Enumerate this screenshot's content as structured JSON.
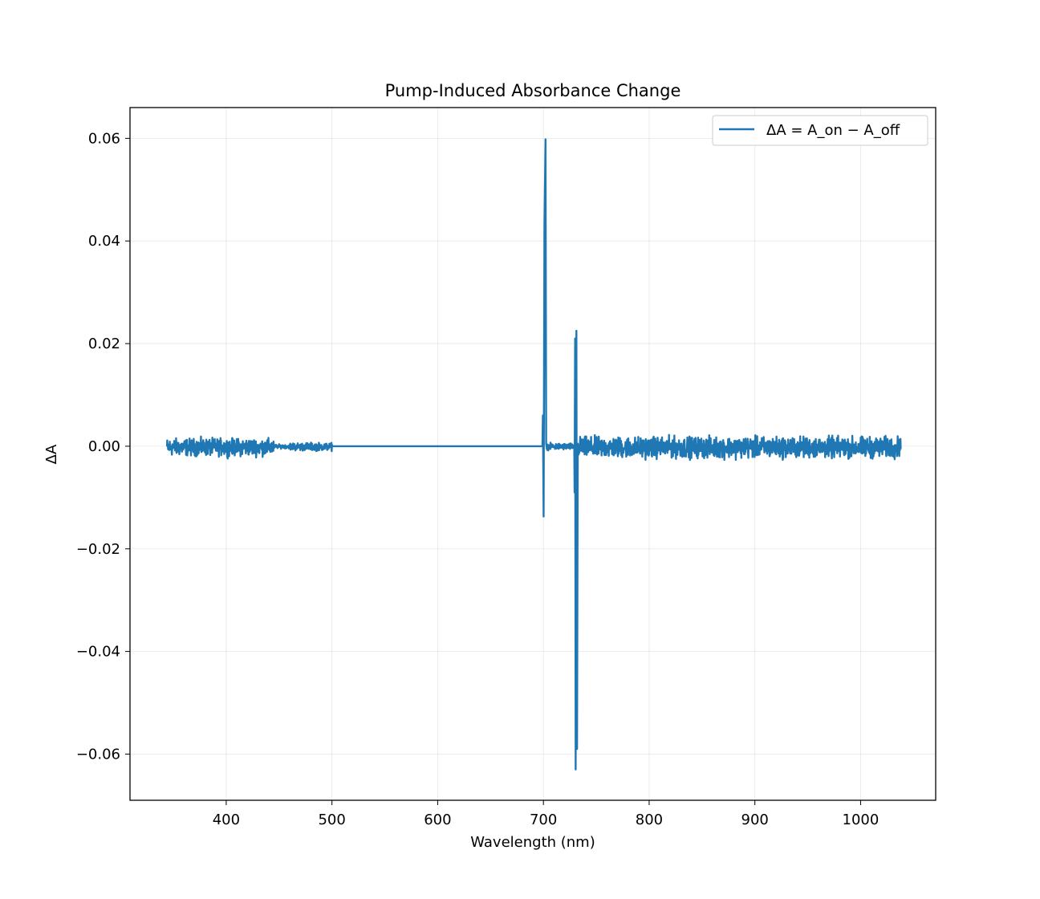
{
  "chart_data": {
    "type": "line",
    "title": "Pump-Induced Absorbance Change",
    "xlabel": "Wavelength (nm)",
    "ylabel": "ΔA",
    "xlim": [
      309,
      1071
    ],
    "ylim": [
      -0.069,
      0.066
    ],
    "xticks": [
      400,
      500,
      600,
      700,
      800,
      900,
      1000
    ],
    "xtick_labels": [
      "400",
      "500",
      "600",
      "700",
      "800",
      "900",
      "1000"
    ],
    "yticks": [
      0.06,
      0.04,
      0.02,
      0.0,
      -0.02,
      -0.04,
      -0.06
    ],
    "ytick_labels": [
      "0.06",
      "0.04",
      "0.02",
      "0.00",
      "−0.02",
      "−0.04",
      "−0.06"
    ],
    "grid": true,
    "legend_position": "top-right",
    "color": "#1f77b4",
    "series": [
      {
        "name": "ΔA = A_on − A_off",
        "x_range": [
          344,
          1038
        ],
        "noise_regions": [
          {
            "from": 344,
            "to": 445,
            "amplitude": 0.0013
          },
          {
            "from": 445,
            "to": 460,
            "amplitude": 0.0003
          },
          {
            "from": 460,
            "to": 500,
            "amplitude": 0.0006
          },
          {
            "from": 500,
            "to": 699,
            "amplitude": 0.0
          },
          {
            "from": 703,
            "to": 729,
            "amplitude": 0.0005
          },
          {
            "from": 733,
            "to": 1038,
            "amplitude": 0.0016
          }
        ],
        "features": [
          {
            "x": 699.5,
            "y": 0.006
          },
          {
            "x": 700.2,
            "y": -0.0137
          },
          {
            "x": 701.0,
            "y": 0.043
          },
          {
            "x": 702.0,
            "y": 0.0598
          },
          {
            "x": 702.6,
            "y": 0.0005
          },
          {
            "x": 729.5,
            "y": -0.009
          },
          {
            "x": 730.0,
            "y": 0.021
          },
          {
            "x": 730.5,
            "y": -0.063
          },
          {
            "x": 731.2,
            "y": 0.0225
          },
          {
            "x": 731.8,
            "y": -0.059
          },
          {
            "x": 732.5,
            "y": 0.0005
          }
        ]
      }
    ]
  }
}
